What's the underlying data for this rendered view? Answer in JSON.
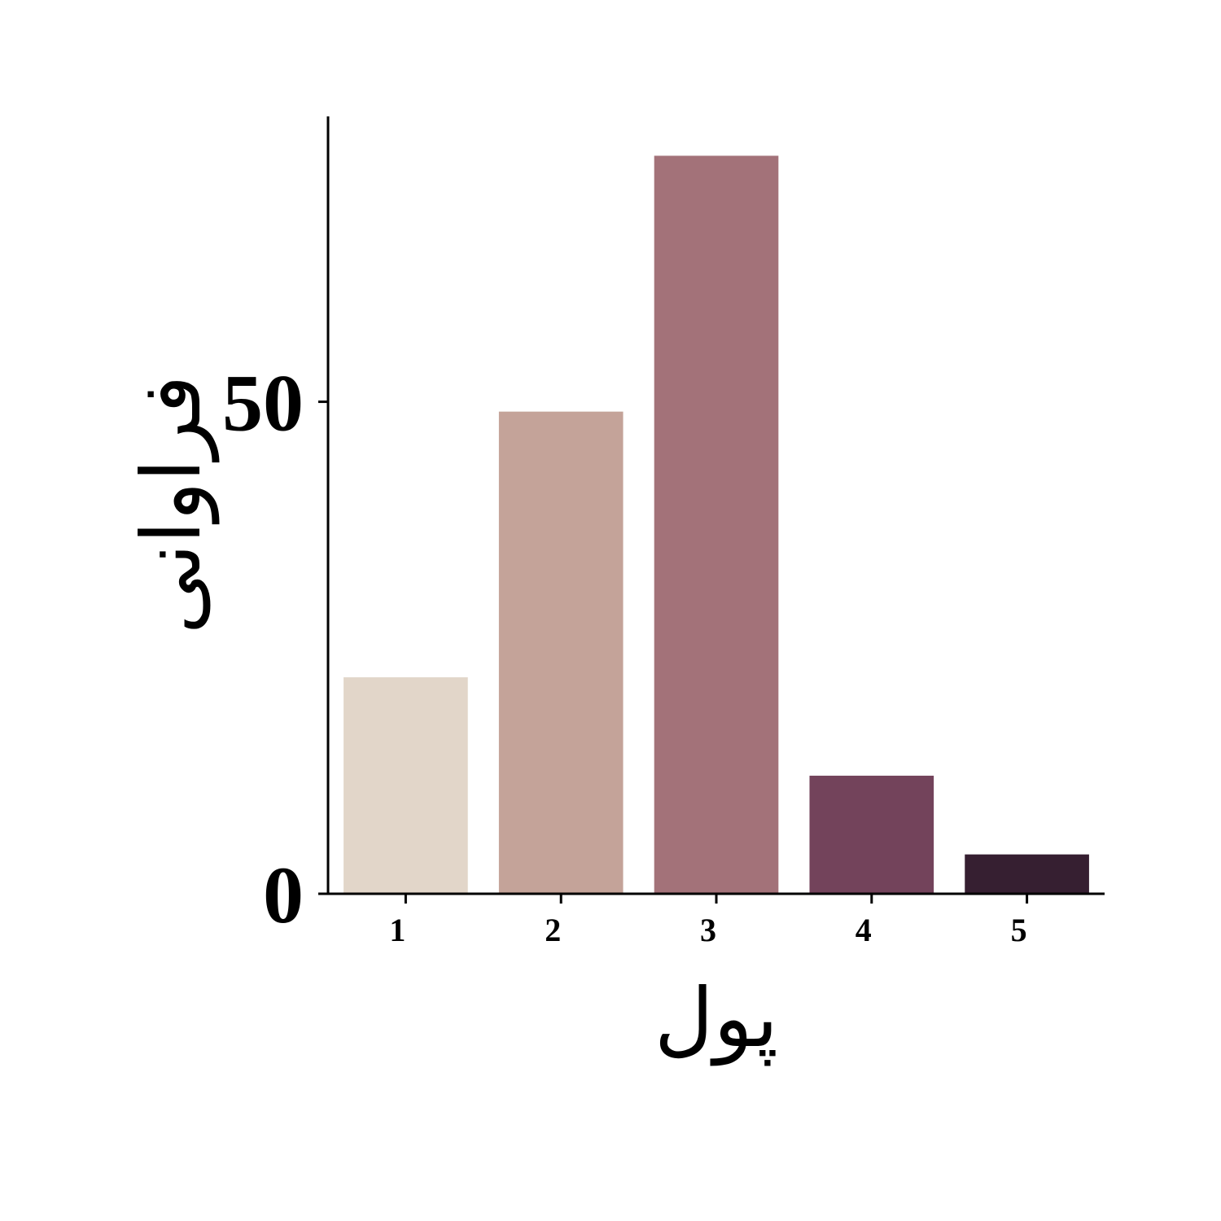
{
  "chart_data": {
    "type": "bar",
    "categories": [
      "1",
      "2",
      "3",
      "4",
      "5"
    ],
    "values": [
      22,
      49,
      75,
      12,
      4
    ],
    "colors": [
      "#e2d6c9",
      "#c4a399",
      "#a37279",
      "#73435b",
      "#361f31"
    ],
    "title": "",
    "xlabel": "پول",
    "ylabel": "فراوانی",
    "yticks": [
      0,
      50
    ],
    "ylim": [
      0,
      79
    ],
    "grid": false,
    "legend": "none"
  }
}
